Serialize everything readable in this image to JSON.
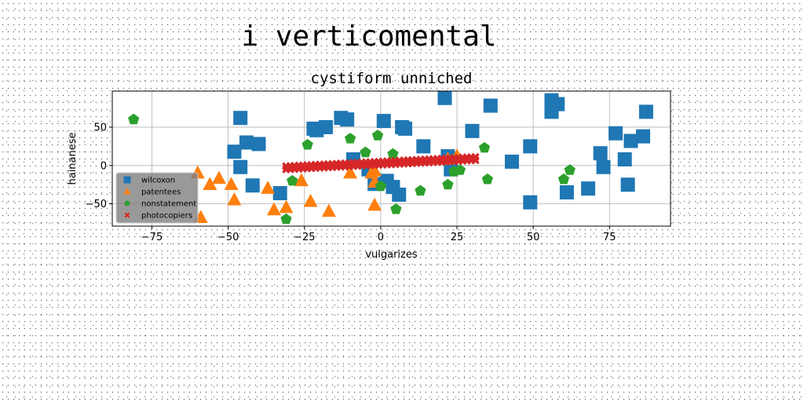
{
  "page": {
    "title": "i verticomental"
  },
  "chart_data": {
    "type": "scatter",
    "title": "cystiform unniched",
    "xlabel": "vulgarizes",
    "ylabel": "hainanese",
    "xlim": [
      -88,
      95
    ],
    "ylim": [
      -79,
      97
    ],
    "xticks": [
      -75,
      -50,
      -25,
      0,
      25,
      50,
      75
    ],
    "yticks": [
      -50,
      0,
      50
    ],
    "grid": true,
    "legend_position": "lower-left",
    "series": [
      {
        "name": "wilcoxon",
        "color": "#1f77b4",
        "marker": "square",
        "points": [
          [
            -48,
            18
          ],
          [
            -46,
            62
          ],
          [
            -44,
            30
          ],
          [
            -46,
            -2
          ],
          [
            -42,
            -26
          ],
          [
            -40,
            28
          ],
          [
            -33,
            -36
          ],
          [
            -22,
            48
          ],
          [
            -21,
            46
          ],
          [
            -18,
            50
          ],
          [
            -13,
            62
          ],
          [
            -11,
            60
          ],
          [
            -9,
            8
          ],
          [
            -4,
            -5
          ],
          [
            -2,
            -24
          ],
          [
            1,
            58
          ],
          [
            2,
            -20
          ],
          [
            4,
            -28
          ],
          [
            6,
            -38
          ],
          [
            7,
            50
          ],
          [
            8,
            48
          ],
          [
            14,
            25
          ],
          [
            21,
            88
          ],
          [
            22,
            12
          ],
          [
            23,
            -5
          ],
          [
            30,
            45
          ],
          [
            36,
            78
          ],
          [
            43,
            5
          ],
          [
            49,
            -48
          ],
          [
            49,
            25
          ],
          [
            56,
            85
          ],
          [
            56,
            70
          ],
          [
            56,
            72
          ],
          [
            58,
            80
          ],
          [
            61,
            -35
          ],
          [
            68,
            -30
          ],
          [
            72,
            16
          ],
          [
            73,
            -2
          ],
          [
            77,
            42
          ],
          [
            80,
            8
          ],
          [
            81,
            -25
          ],
          [
            82,
            32
          ],
          [
            86,
            38
          ],
          [
            87,
            70
          ]
        ]
      },
      {
        "name": "patentees",
        "color": "#ff7f0e",
        "marker": "triangle",
        "points": [
          [
            -60,
            -10
          ],
          [
            -59,
            -68
          ],
          [
            -56,
            -25
          ],
          [
            -53,
            -17
          ],
          [
            -49,
            -25
          ],
          [
            -48,
            -45
          ],
          [
            -37,
            -30
          ],
          [
            -35,
            -58
          ],
          [
            -31,
            -55
          ],
          [
            -26,
            -20
          ],
          [
            -23,
            -47
          ],
          [
            -17,
            -60
          ],
          [
            -10,
            -10
          ],
          [
            -3,
            -10
          ],
          [
            -2,
            -22
          ],
          [
            -2,
            -7
          ],
          [
            -2,
            -52
          ],
          [
            22,
            8
          ],
          [
            25,
            12
          ]
        ]
      },
      {
        "name": "nonstatement",
        "color": "#2ca02c",
        "marker": "pentagon",
        "points": [
          [
            -81,
            60
          ],
          [
            -31,
            -70
          ],
          [
            -29,
            -20
          ],
          [
            -24,
            27
          ],
          [
            -10,
            35
          ],
          [
            -5,
            17
          ],
          [
            -1,
            39
          ],
          [
            0,
            -27
          ],
          [
            4,
            15
          ],
          [
            5,
            -57
          ],
          [
            13,
            -33
          ],
          [
            22,
            -25
          ],
          [
            24,
            -8
          ],
          [
            26,
            -6
          ],
          [
            34,
            23
          ],
          [
            35,
            -18
          ],
          [
            60,
            -18
          ],
          [
            62,
            -6
          ]
        ]
      },
      {
        "name": "photocopiers",
        "color": "#d62728",
        "marker": "x",
        "line": {
          "x": [
            -31,
            31
          ],
          "y": [
            -1,
            11
          ],
          "x2": [
            -31,
            31
          ],
          "y2": [
            -5,
            7
          ],
          "count": 46
        }
      }
    ]
  }
}
